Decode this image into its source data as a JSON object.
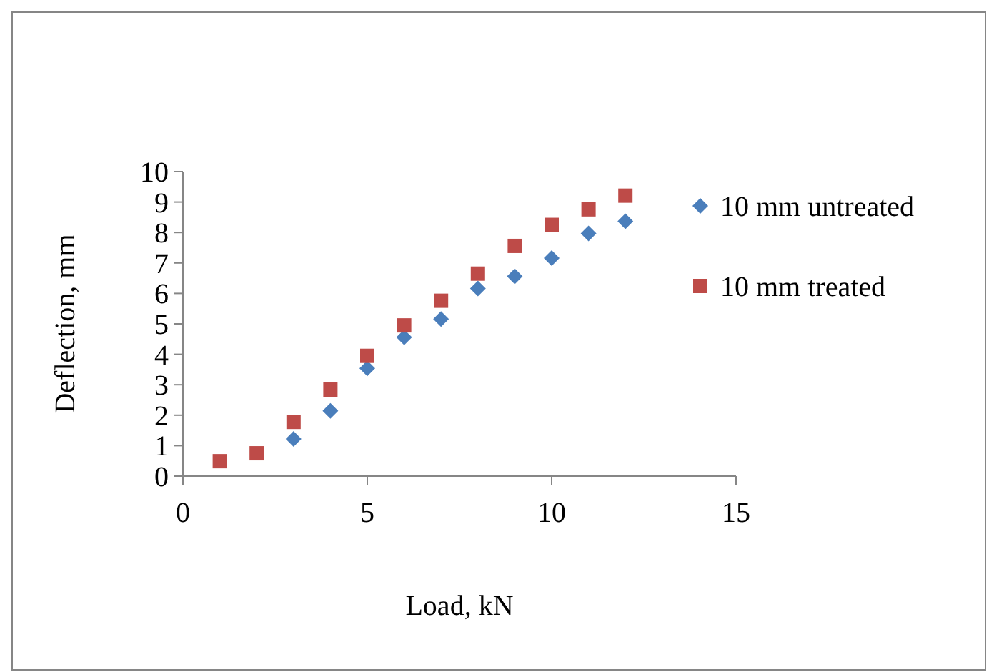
{
  "chart_data": {
    "type": "scatter",
    "xlabel": "Load, kN",
    "ylabel": "Deflection, mm",
    "x": [
      1,
      2,
      3,
      4,
      5,
      6,
      7,
      8,
      9,
      10,
      11,
      12
    ],
    "series": [
      {
        "name": "10 mm untreated",
        "color": "#4a7ebb",
        "marker": "diamond",
        "values": [
          null,
          null,
          1.22,
          2.14,
          3.54,
          4.56,
          5.16,
          6.16,
          6.56,
          7.16,
          7.97,
          8.37
        ]
      },
      {
        "name": "10 mm treated",
        "color": "#be4b48",
        "marker": "square",
        "values": [
          0.49,
          0.75,
          1.78,
          2.84,
          3.95,
          4.95,
          5.76,
          6.65,
          7.56,
          8.25,
          8.76,
          9.21
        ]
      }
    ],
    "xlim": [
      0,
      15
    ],
    "xticks": [
      0,
      5,
      10,
      15
    ],
    "ylim": [
      0,
      10
    ],
    "yticks": [
      0,
      1,
      2,
      3,
      4,
      5,
      6,
      7,
      8,
      9,
      10
    ],
    "grid": false,
    "legend": "right"
  }
}
